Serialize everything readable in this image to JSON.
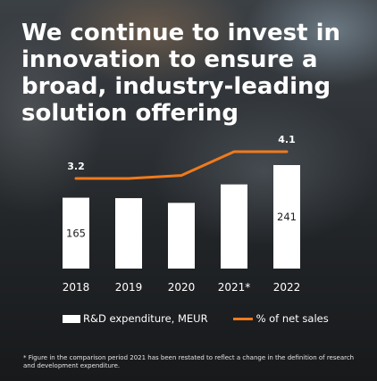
{
  "title": "We continue to invest in innovation to ensure a broad, industry-leading solution offering",
  "chart_data": {
    "type": "bar",
    "categories": [
      "2018",
      "2019",
      "2020",
      "2021*",
      "2022"
    ],
    "series": [
      {
        "name": "R&D expenditure, MEUR",
        "type": "bar",
        "values": [
          165,
          164,
          153,
          196,
          241
        ],
        "labels": [
          "165",
          "",
          "",
          "",
          "241"
        ],
        "color": "#ffffff"
      },
      {
        "name": "% of net sales",
        "type": "line",
        "values": [
          3.2,
          3.2,
          3.3,
          4.1,
          4.1
        ],
        "labels": [
          "3.2",
          "",
          "",
          "",
          "4.1"
        ],
        "color": "#f07a1c"
      }
    ],
    "grid": false,
    "legend": "bottom"
  },
  "legend": {
    "bar_label": "R&D expenditure, MEUR",
    "line_label": "% of net sales"
  },
  "footnote": "* Figure in the comparison period 2021 has been restated to reflect a change in the definition of research and development expenditure."
}
